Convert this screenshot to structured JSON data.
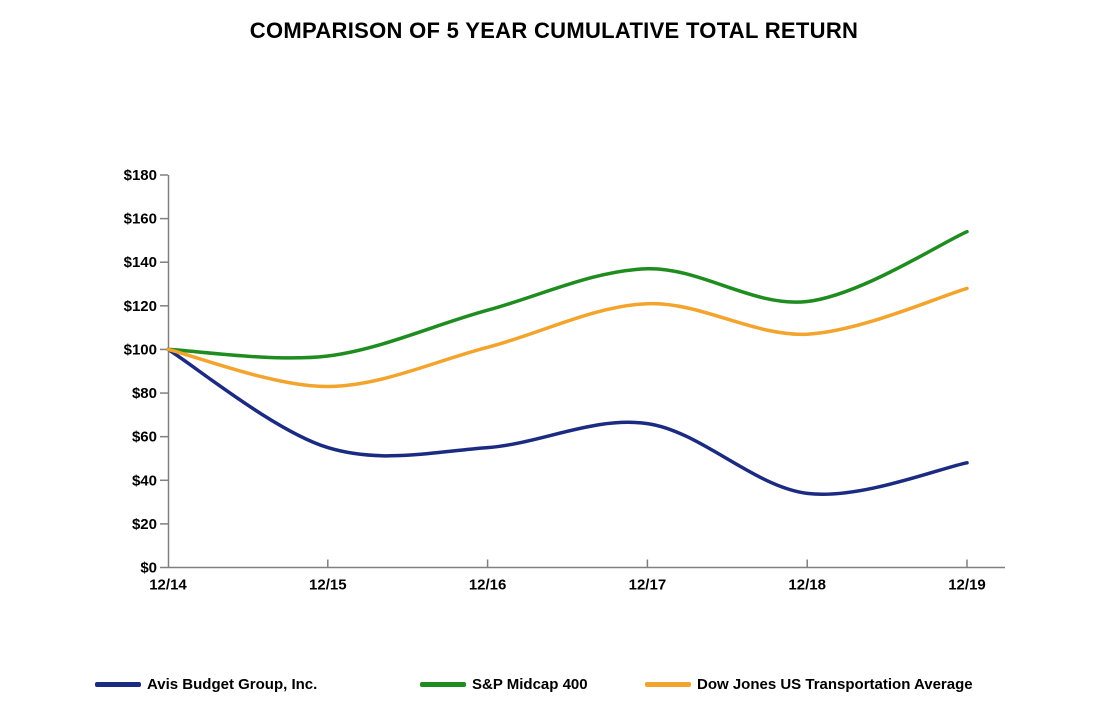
{
  "title": "COMPARISON OF 5 YEAR CUMULATIVE TOTAL RETURN",
  "chart_data": {
    "type": "line",
    "categories": [
      "12/14",
      "12/15",
      "12/16",
      "12/17",
      "12/18",
      "12/19"
    ],
    "series": [
      {
        "name": "Avis Budget Group, Inc.",
        "color": "#1C2B82",
        "values": [
          100,
          55,
          55,
          66,
          34,
          48
        ]
      },
      {
        "name": "S&P Midcap 400",
        "color": "#1E8C1E",
        "values": [
          100,
          97,
          118,
          137,
          122,
          154
        ]
      },
      {
        "name": "Dow Jones US Transportation Average",
        "color": "#F2A42C",
        "values": [
          100,
          83,
          101,
          121,
          107,
          128
        ]
      }
    ],
    "xlabel": "",
    "ylabel": "",
    "ylim": [
      0,
      180
    ],
    "y_tick_step": 20,
    "y_tick_labels": [
      "$0",
      "$20",
      "$40",
      "$60",
      "$80",
      "$100",
      "$120",
      "$140",
      "$160",
      "$180"
    ],
    "grid": false,
    "line_smoothing": true,
    "legend_position": "bottom",
    "axis_color": "#808080",
    "text_color": "#000000",
    "background_color": "#FFFFFF"
  }
}
